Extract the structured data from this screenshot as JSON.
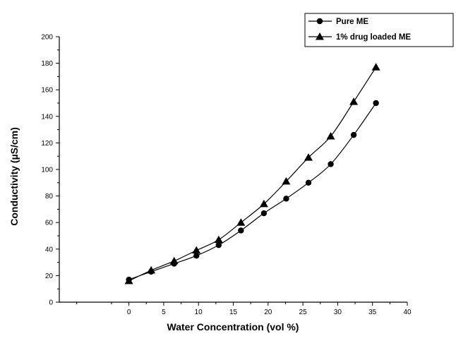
{
  "chart_data": {
    "type": "line",
    "title": "",
    "xlabel": "Water Concentration (vol %)",
    "ylabel": "Conductivity (µS/cm)",
    "xlim": [
      -10,
      40
    ],
    "ylim": [
      0,
      200
    ],
    "x_ticks": [
      0,
      5,
      10,
      15,
      20,
      25,
      30,
      35,
      40
    ],
    "y_ticks": [
      0,
      20,
      40,
      60,
      80,
      100,
      120,
      140,
      160,
      180,
      200
    ],
    "grid": false,
    "legend_position": "top-right",
    "series": [
      {
        "name": "Pure ME",
        "marker": "circle",
        "color": "#000000",
        "x": [
          0,
          3.2,
          6.5,
          9.7,
          12.9,
          16.1,
          19.4,
          22.6,
          25.8,
          29.0,
          32.3,
          35.5
        ],
        "y": [
          17,
          23,
          29,
          35,
          43,
          54,
          67,
          78,
          90,
          104,
          126,
          150
        ]
      },
      {
        "name": "1% drug loaded ME",
        "marker": "triangle",
        "color": "#000000",
        "x": [
          0,
          3.2,
          6.5,
          9.7,
          12.9,
          16.1,
          19.4,
          22.6,
          25.8,
          29.0,
          32.3,
          35.5
        ],
        "y": [
          16,
          24,
          31,
          39,
          47,
          60,
          74,
          91,
          109,
          125,
          151,
          177
        ]
      }
    ]
  }
}
